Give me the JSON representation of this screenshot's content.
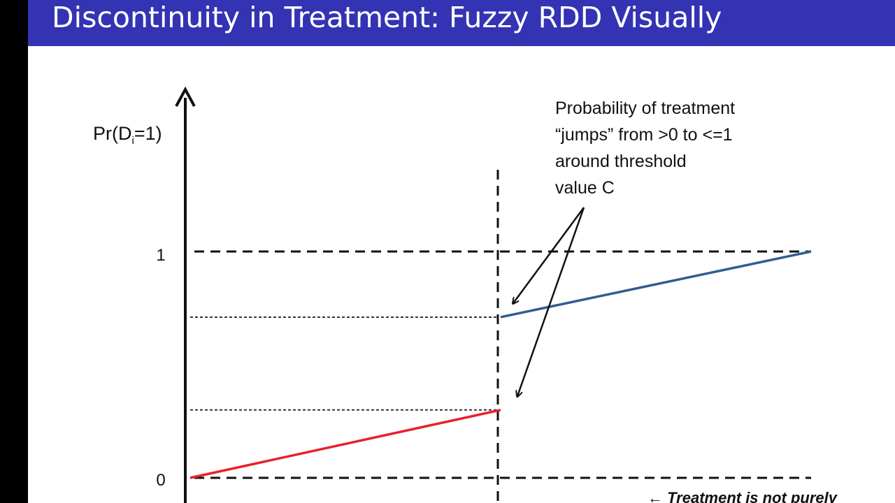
{
  "slide": {
    "title": "Discontinuity in Treatment: Fuzzy RDD Visually"
  },
  "diagram": {
    "y_axis_label_prefix": "Pr(D",
    "y_axis_label_subscript": "i",
    "y_axis_label_suffix": "=1)",
    "y_ticks": [
      {
        "label": "1",
        "value": 1
      },
      {
        "label": "0",
        "value": 0
      }
    ],
    "annotation_lines": [
      "Probability of treatment",
      "“jumps” from >0 to <=1",
      "around threshold",
      "value C"
    ],
    "bottom_note": "Treatment is not purely",
    "bottom_arrow": "←"
  },
  "chart_data": {
    "type": "line",
    "ylim": [
      0,
      1
    ],
    "xlim": [
      0,
      1
    ],
    "threshold_x": 0.5,
    "series": [
      {
        "x": [
          0,
          0.5
        ],
        "y": [
          0,
          0.3
        ],
        "color": "#e8212a"
      },
      {
        "x": [
          0.5,
          1
        ],
        "y": [
          0.71,
          1
        ],
        "color": "#2e5e8e"
      }
    ]
  }
}
